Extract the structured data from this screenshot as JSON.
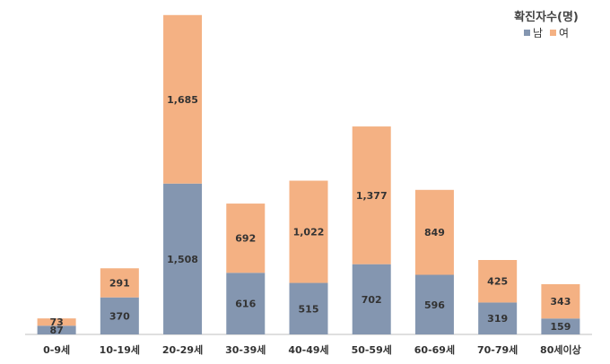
{
  "legend": {
    "title": "확진자수(명)",
    "male_label": "남",
    "female_label": "여"
  },
  "colors": {
    "male": "#8496B0",
    "female": "#F4B183"
  },
  "chart_data": {
    "type": "bar",
    "stacked": true,
    "title": "",
    "xlabel": "",
    "ylabel": "",
    "ylim": [
      0,
      3200
    ],
    "grid": false,
    "legend_position": "top-right",
    "legend_title": "확진자수(명)",
    "categories": [
      "0-9세",
      "10-19세",
      "20-29세",
      "30-39세",
      "40-49세",
      "50-59세",
      "60-69세",
      "70-79세",
      "80세이상"
    ],
    "series": [
      {
        "name": "남",
        "values": [
          87,
          370,
          1508,
          616,
          515,
          702,
          596,
          319,
          159
        ]
      },
      {
        "name": "여",
        "values": [
          73,
          291,
          1685,
          692,
          1022,
          1377,
          849,
          425,
          343
        ]
      }
    ]
  }
}
